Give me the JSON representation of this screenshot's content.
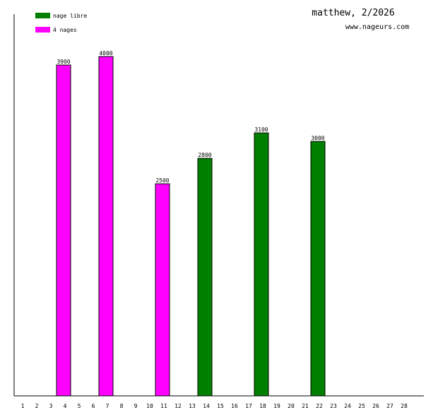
{
  "chart_data": {
    "type": "bar",
    "title": "matthew, 2/2026",
    "subtitle": "www.nageurs.com",
    "categories": [
      "1",
      "2",
      "3",
      "4",
      "5",
      "6",
      "7",
      "8",
      "9",
      "10",
      "11",
      "12",
      "13",
      "14",
      "15",
      "16",
      "17",
      "18",
      "19",
      "20",
      "21",
      "22",
      "23",
      "24",
      "25",
      "26",
      "27",
      "28"
    ],
    "series": [
      {
        "name": "nage libre",
        "color": "#008000",
        "values": [
          null,
          null,
          null,
          null,
          null,
          null,
          null,
          null,
          null,
          null,
          null,
          null,
          null,
          2800,
          null,
          null,
          null,
          3100,
          null,
          null,
          null,
          3000,
          null,
          null,
          null,
          null,
          null,
          null
        ]
      },
      {
        "name": "4 nages",
        "color": "#ff00ff",
        "values": [
          null,
          null,
          null,
          3900,
          null,
          null,
          4000,
          null,
          null,
          null,
          2500,
          null,
          null,
          null,
          null,
          null,
          null,
          null,
          null,
          null,
          null,
          null,
          null,
          null,
          null,
          null,
          null,
          null
        ]
      }
    ],
    "ylim": [
      0,
      4500
    ]
  }
}
